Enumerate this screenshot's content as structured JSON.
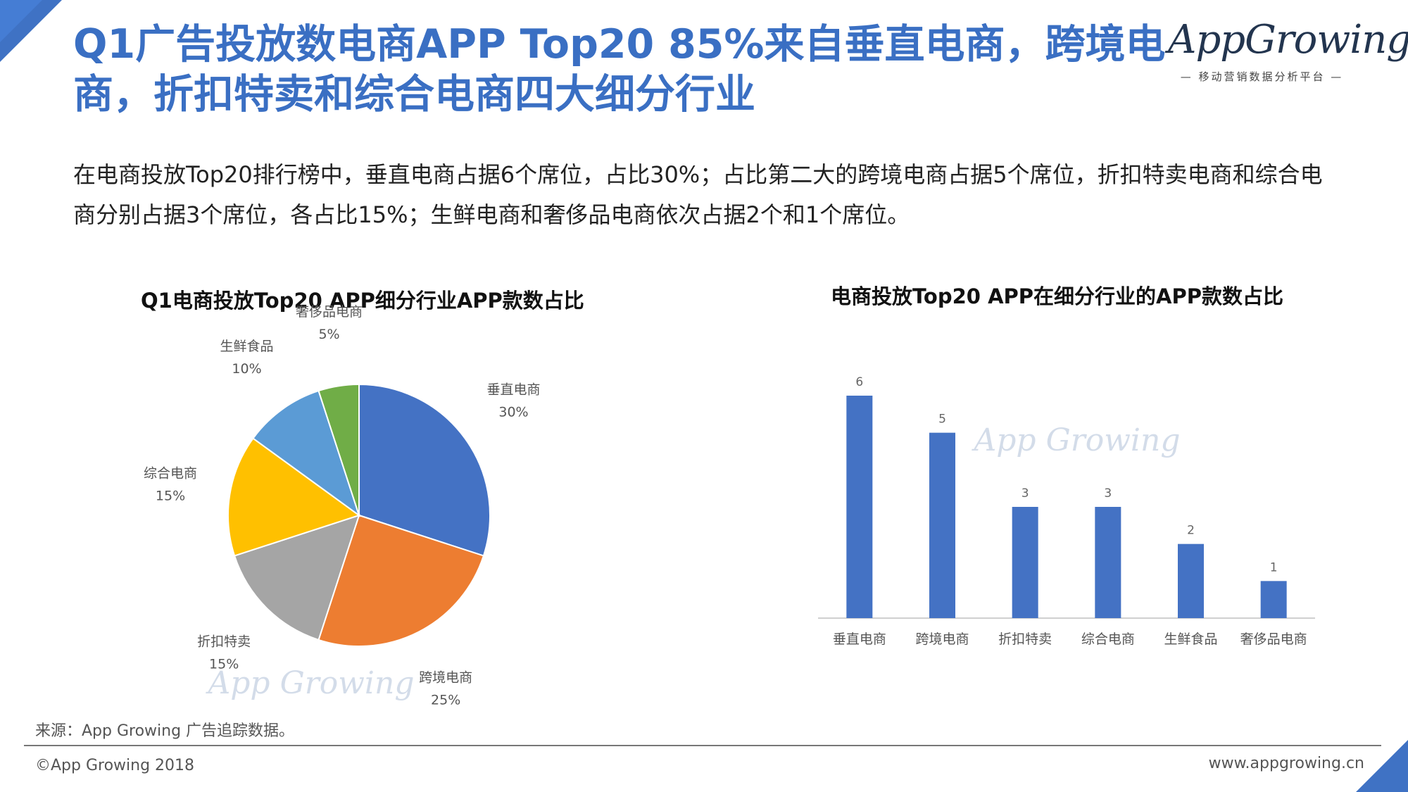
{
  "title": "Q1广告投放数电商APP Top20 85%来自垂直电商，跨境电商，折扣特卖和综合电商四大细分行业",
  "logo": {
    "name": "AppGrowing",
    "subtitle": "— 移动营销数据分析平台 —"
  },
  "intro": "在电商投放Top20排行榜中，垂直电商占据6个席位，占比30%；占比第二大的跨境电商占据5个席位，折扣特卖电商和综合电商分别占据3个席位，各占比15%；生鲜电商和奢侈品电商依次占据2个和1个席位。",
  "watermark": "App Growing",
  "colors": {
    "title": "#3a6fc3",
    "bar": "#4472c4"
  },
  "chart_data": [
    {
      "type": "pie",
      "title": "Q1电商投放Top20 APP细分行业APP款数占比",
      "slices": [
        {
          "label": "垂直电商",
          "value": 30,
          "pct": "30%",
          "color": "#4472c4"
        },
        {
          "label": "跨境电商",
          "value": 25,
          "pct": "25%",
          "color": "#ed7d31"
        },
        {
          "label": "折扣特卖",
          "value": 15,
          "pct": "15%",
          "color": "#a5a5a5"
        },
        {
          "label": "综合电商",
          "value": 15,
          "pct": "15%",
          "color": "#ffc000"
        },
        {
          "label": "生鲜食品",
          "value": 10,
          "pct": "10%",
          "color": "#5b9bd5"
        },
        {
          "label": "奢侈品电商",
          "value": 5,
          "pct": "5%",
          "color": "#70ad47"
        }
      ]
    },
    {
      "type": "bar",
      "title": "电商投放Top20 APP在细分行业的APP款数占比",
      "categories": [
        "垂直电商",
        "跨境电商",
        "折扣特卖",
        "综合电商",
        "生鲜食品",
        "奢侈品电商"
      ],
      "values": [
        6,
        5,
        3,
        3,
        2,
        1
      ],
      "ylim": [
        0,
        6
      ],
      "grid": false
    }
  ],
  "footer": {
    "source": "来源：App Growing 广告追踪数据。",
    "copyright": "©App Growing 2018",
    "site": "www.appgrowing.cn"
  }
}
